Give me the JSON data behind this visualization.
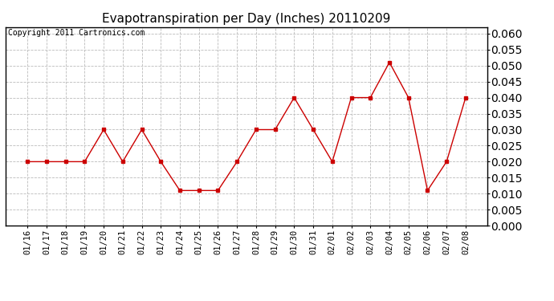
{
  "title": "Evapotranspiration per Day (Inches) 20110209",
  "copyright_text": "Copyright 2011 Cartronics.com",
  "x_labels": [
    "01/16",
    "01/17",
    "01/18",
    "01/19",
    "01/20",
    "01/21",
    "01/22",
    "01/23",
    "01/24",
    "01/25",
    "01/26",
    "01/27",
    "01/28",
    "01/29",
    "01/30",
    "01/31",
    "02/01",
    "02/02",
    "02/03",
    "02/04",
    "02/05",
    "02/06",
    "02/07",
    "02/08"
  ],
  "y_values": [
    0.02,
    0.02,
    0.02,
    0.02,
    0.03,
    0.02,
    0.03,
    0.02,
    0.011,
    0.011,
    0.011,
    0.02,
    0.03,
    0.03,
    0.04,
    0.03,
    0.02,
    0.04,
    0.04,
    0.051,
    0.04,
    0.011,
    0.02,
    0.04
  ],
  "line_color": "#cc0000",
  "marker": "s",
  "marker_size": 3,
  "ylim": [
    0.0,
    0.062
  ],
  "yticks": [
    0.0,
    0.005,
    0.01,
    0.015,
    0.02,
    0.025,
    0.03,
    0.035,
    0.04,
    0.045,
    0.05,
    0.055,
    0.06
  ],
  "grid_color": "#bbbbbb",
  "bg_color": "#ffffff",
  "title_fontsize": 11,
  "copyright_fontsize": 7,
  "tick_fontsize": 7.5,
  "ytick_fontweight": "bold"
}
